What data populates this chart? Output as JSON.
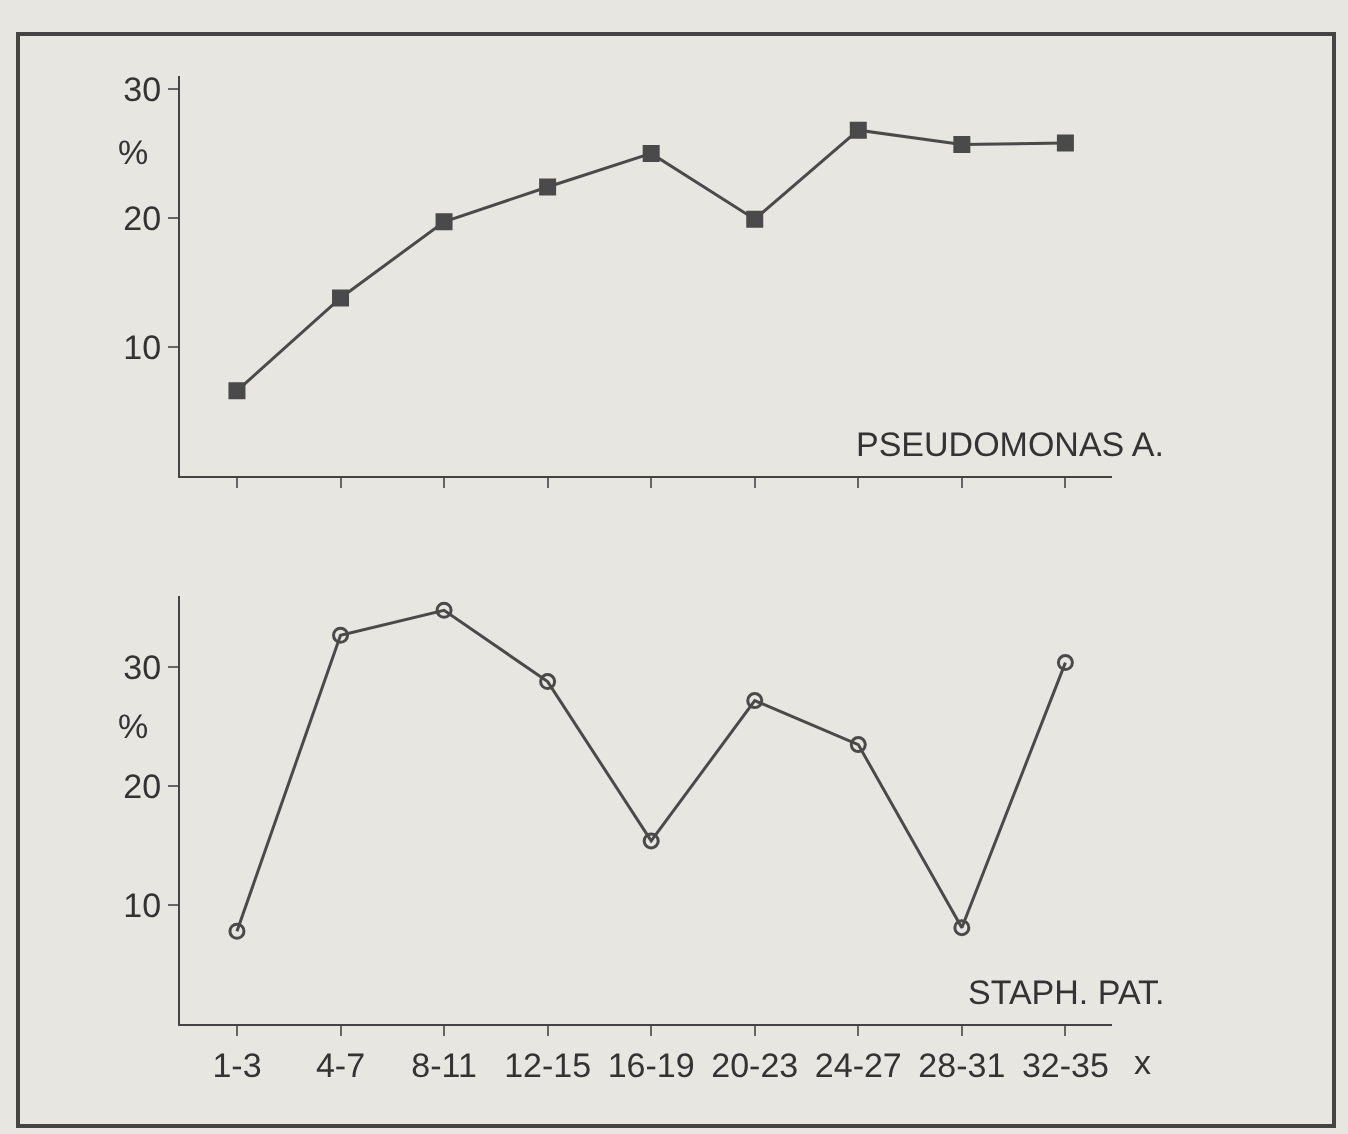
{
  "chart_data": [
    {
      "type": "line",
      "title": "PSEUDOMONAS A.",
      "ylabel": "%",
      "categories": [
        null,
        null,
        null,
        null,
        null,
        null,
        null,
        null,
        null
      ],
      "series": [
        {
          "color": "#4a4a4a",
          "values": [
            6.6,
            13.8,
            19.7,
            22.4,
            25,
            19.9,
            26.8,
            25.7,
            25.8
          ]
        }
      ],
      "ylim": [
        0,
        31
      ],
      "yticks": [
        10,
        20,
        30
      ],
      "tick_labels": "y",
      "marker": "square",
      "grid": false
    },
    {
      "type": "line",
      "title": "STAPH. PAT.",
      "ylabel": "%",
      "xlabel": "x",
      "categories": [
        "1-3",
        "4-7",
        "8-11",
        "12-15",
        "16-19",
        "20-23",
        "24-27",
        "28-31",
        "32-35"
      ],
      "series": [
        {
          "color": "#4a4a4a",
          "values": [
            7.8,
            32.7,
            34.8,
            28.8,
            15.4,
            27.2,
            23.5,
            8.1,
            30.4
          ]
        }
      ],
      "ylim": [
        0,
        36
      ],
      "yticks": [
        10,
        20,
        30
      ],
      "marker": "circle",
      "grid": false
    }
  ]
}
